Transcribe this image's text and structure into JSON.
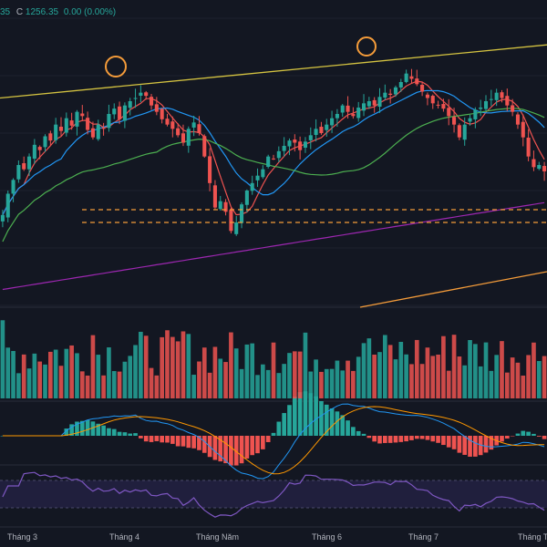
{
  "header": {
    "ohlc_prefix": "35",
    "close_label": "C",
    "close_value": "1256.35",
    "change_value": "0.00",
    "change_pct": "(0.00%)"
  },
  "colors": {
    "bg": "#131722",
    "up": "#26a69a",
    "down": "#ef5350",
    "ma_fast": "#ef5350",
    "ma_mid": "#2196f3",
    "ma_slow": "#4caf50",
    "ma_long": "#9c27b0",
    "trendline_top": "#d4c341",
    "trendline_bottom": "#f59c3a",
    "support_line": "#f59c3a",
    "peak_marker": "#f59c3a",
    "macd_line": "#2196f3",
    "signal_line": "#ff9800",
    "rsi_line": "#7e57c2",
    "rsi_band": "#2a2550",
    "grid": "#1e222d"
  },
  "chart_data": {
    "type": "candlestick",
    "title": "",
    "x_tick_labels": [
      "Tháng 3",
      "Tháng 4",
      "Tháng Năm",
      "Tháng 6",
      "Tháng 7",
      "Tháng T"
    ],
    "last_close": 1256.35,
    "change": 0.0,
    "change_pct": 0.0,
    "ylim": [
      1130,
      1400
    ],
    "candles_close": [
      1215,
      1235,
      1248,
      1262,
      1258,
      1270,
      1281,
      1276,
      1289,
      1285,
      1300,
      1294,
      1306,
      1299,
      1312,
      1308,
      1295,
      1288,
      1300,
      1296,
      1310,
      1315,
      1305,
      1318,
      1322,
      1325,
      1330,
      1327,
      1318,
      1312,
      1305,
      1300,
      1296,
      1290,
      1283,
      1296,
      1302,
      1292,
      1270,
      1245,
      1222,
      1228,
      1218,
      1200,
      1208,
      1225,
      1238,
      1245,
      1252,
      1258,
      1270,
      1268,
      1275,
      1280,
      1285,
      1283,
      1276,
      1284,
      1290,
      1296,
      1292,
      1300,
      1306,
      1310,
      1318,
      1312,
      1308,
      1316,
      1320,
      1322,
      1318,
      1326,
      1330,
      1328,
      1335,
      1340,
      1348,
      1343,
      1338,
      1331,
      1325,
      1320,
      1318,
      1315,
      1308,
      1300,
      1288,
      1300,
      1306,
      1314,
      1316,
      1322,
      1324,
      1330,
      1325,
      1318,
      1312,
      1300,
      1288,
      1270,
      1260,
      1262,
      1256
    ],
    "support_levels": [
      1220,
      1208
    ],
    "peak_markers": [
      "Tháng 4",
      "Tháng 6"
    ]
  }
}
